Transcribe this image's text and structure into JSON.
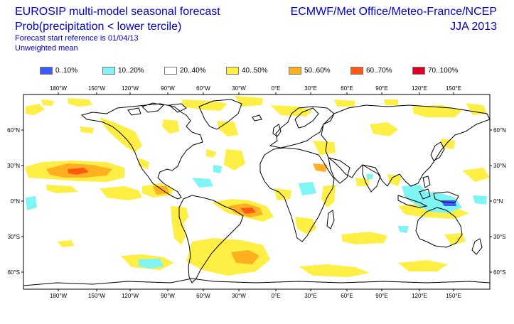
{
  "header": {
    "title_line1": "EUROSIP multi-model seasonal forecast",
    "title_line2": "Prob(precipitation < lower tercile)",
    "forecast_reference": "Forecast start reference is 01/04/13",
    "mean_type": "Unweighted mean",
    "source": "ECMWF/Met Office/Meteo-France/NCEP",
    "season": "JJA 2013"
  },
  "legend": [
    {
      "label": "0..10%",
      "color": "#3a5cff"
    },
    {
      "label": "10..20%",
      "color": "#7ff4f4"
    },
    {
      "label": "20..40%",
      "color": "#ffffff"
    },
    {
      "label": "40..50%",
      "color": "#ffee44"
    },
    {
      "label": "50..60%",
      "color": "#ffb020"
    },
    {
      "label": "60..70%",
      "color": "#ff5a10"
    },
    {
      "label": "70..100%",
      "color": "#dd0022"
    }
  ],
  "axes": {
    "longitude_labels": [
      "180°W",
      "150°W",
      "120°W",
      "90°W",
      "60°W",
      "30°W",
      "0°E",
      "30°E",
      "60°E",
      "90°E",
      "120°E",
      "150°E"
    ],
    "latitude_labels": [
      "60°N",
      "30°N",
      "0°N",
      "30°S",
      "60°S"
    ]
  },
  "colors": {
    "coastline": "#000000",
    "frame": "#000000"
  }
}
